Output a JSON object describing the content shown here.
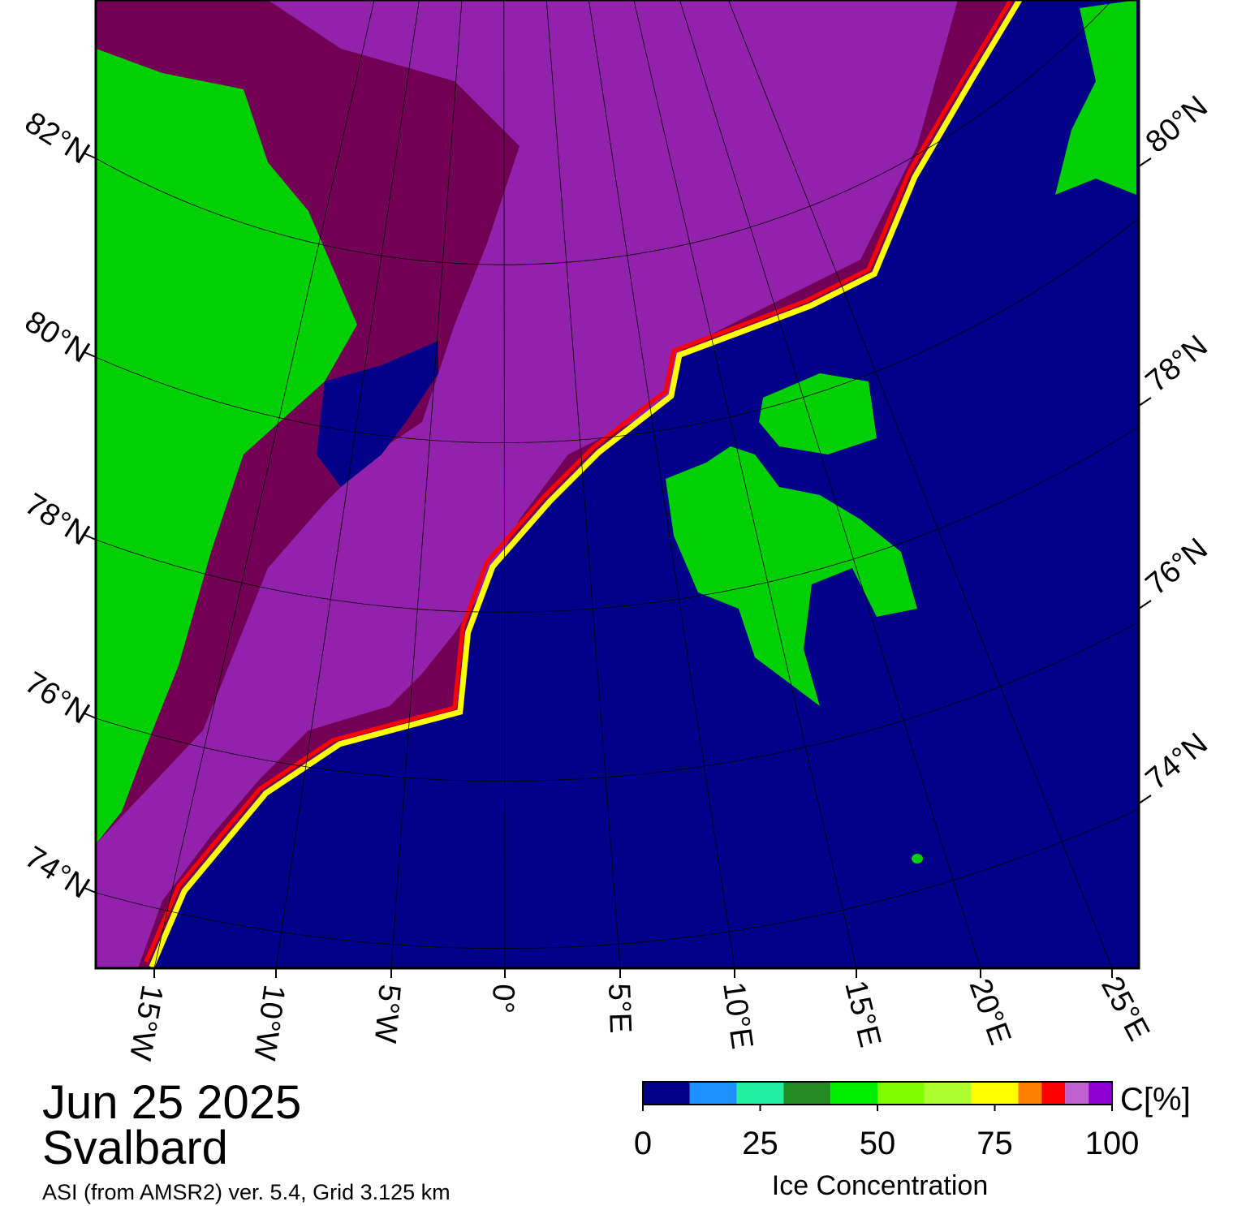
{
  "header": {
    "date": "Jun 25 2025",
    "region": "Svalbard",
    "source": "ASI (from AMSR2) ver. 5.4,  Grid 3.125 km"
  },
  "map": {
    "lon_labels": [
      "15°W",
      "10°W",
      "5°W",
      "0°",
      "5°E",
      "10°E",
      "15°E",
      "20°E",
      "25°E"
    ],
    "lat_labels_left": [
      "82°N",
      "80°N",
      "78°N",
      "76°N",
      "74°N"
    ],
    "lat_labels_right": [
      "80°N",
      "78°N",
      "76°N",
      "74°N"
    ],
    "colorbar": {
      "bounds": [
        0,
        10,
        20,
        30,
        40,
        50,
        60,
        70,
        80,
        85,
        90,
        95,
        100
      ],
      "colors": [
        "#000088",
        "#1e90ff",
        "#20f0a0",
        "#228b22",
        "#00ee00",
        "#7fff00",
        "#adff2f",
        "#ffff00",
        "#ff8000",
        "#ff0000",
        "#c060d0",
        "#9000d0"
      ],
      "ticks": [
        0,
        25,
        50,
        75,
        100
      ],
      "unit": "C[%]",
      "label": "Ice Concentration"
    }
  }
}
